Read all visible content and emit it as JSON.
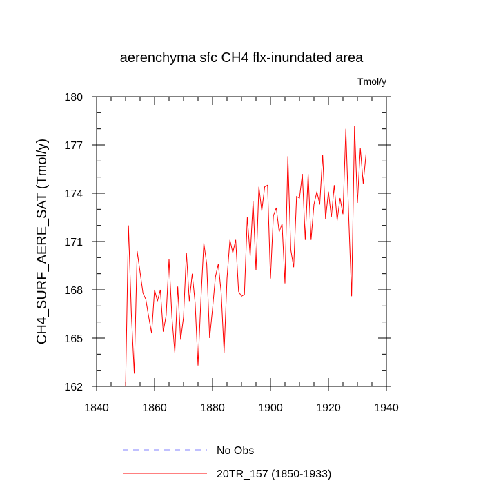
{
  "chart_data": {
    "type": "line",
    "title": "aerenchyma sfc CH4 flx-inundated area",
    "units_label": "Tmol/y",
    "ylabel": "CH4_SURF_AERE_SAT  (Tmol/y)",
    "xlabel": "",
    "xlim": [
      1840,
      1940
    ],
    "ylim": [
      162,
      180
    ],
    "x_ticks": [
      1840,
      1860,
      1880,
      1900,
      1920,
      1940
    ],
    "x_tick_labels": [
      "1840",
      "1860",
      "1880",
      "1900",
      "1920",
      "1940"
    ],
    "y_ticks": [
      162,
      165,
      168,
      171,
      174,
      177,
      180
    ],
    "y_tick_labels": [
      "162",
      "165",
      "168",
      "171",
      "174",
      "177",
      "180"
    ],
    "grid": false,
    "legend_position": "bottom",
    "series": [
      {
        "name": "No Obs",
        "color": "#8080ff",
        "dashed": true,
        "x": [],
        "values": []
      },
      {
        "name": "20TR_157 (1850-1933)",
        "color": "#ff0000",
        "dashed": false,
        "x": [
          1850,
          1851,
          1852,
          1853,
          1854,
          1855,
          1856,
          1857,
          1858,
          1859,
          1860,
          1861,
          1862,
          1863,
          1864,
          1865,
          1866,
          1867,
          1868,
          1869,
          1870,
          1871,
          1872,
          1873,
          1874,
          1875,
          1876,
          1877,
          1878,
          1879,
          1880,
          1881,
          1882,
          1883,
          1884,
          1885,
          1886,
          1887,
          1888,
          1889,
          1890,
          1891,
          1892,
          1893,
          1894,
          1895,
          1896,
          1897,
          1898,
          1899,
          1900,
          1901,
          1902,
          1903,
          1904,
          1905,
          1906,
          1907,
          1908,
          1909,
          1910,
          1911,
          1912,
          1913,
          1914,
          1915,
          1916,
          1917,
          1918,
          1919,
          1920,
          1921,
          1922,
          1923,
          1924,
          1925,
          1926,
          1927,
          1928,
          1929,
          1930,
          1931,
          1932,
          1933
        ],
        "values": [
          161.9,
          172.0,
          166.5,
          162.8,
          170.4,
          169.1,
          167.8,
          167.4,
          166.3,
          165.3,
          168.0,
          167.3,
          168.0,
          165.4,
          166.4,
          169.9,
          166.3,
          164.1,
          168.2,
          164.9,
          166.3,
          170.3,
          167.3,
          169.0,
          167.2,
          163.3,
          167.4,
          170.9,
          169.6,
          165.0,
          166.8,
          168.8,
          169.6,
          167.8,
          164.1,
          168.7,
          171.1,
          170.3,
          171.1,
          167.9,
          167.6,
          167.7,
          172.5,
          170.1,
          173.5,
          169.2,
          174.4,
          172.9,
          174.4,
          174.5,
          168.7,
          172.6,
          173.1,
          171.6,
          172.1,
          168.4,
          176.3,
          170.5,
          169.4,
          173.8,
          173.7,
          175.2,
          171.1,
          175.2,
          171.1,
          173.3,
          174.1,
          173.3,
          176.4,
          172.4,
          174.1,
          172.5,
          174.5,
          172.3,
          173.7,
          172.7,
          178.0,
          172.5,
          167.6,
          178.2,
          173.4,
          176.8,
          174.6,
          176.5
        ]
      }
    ]
  }
}
